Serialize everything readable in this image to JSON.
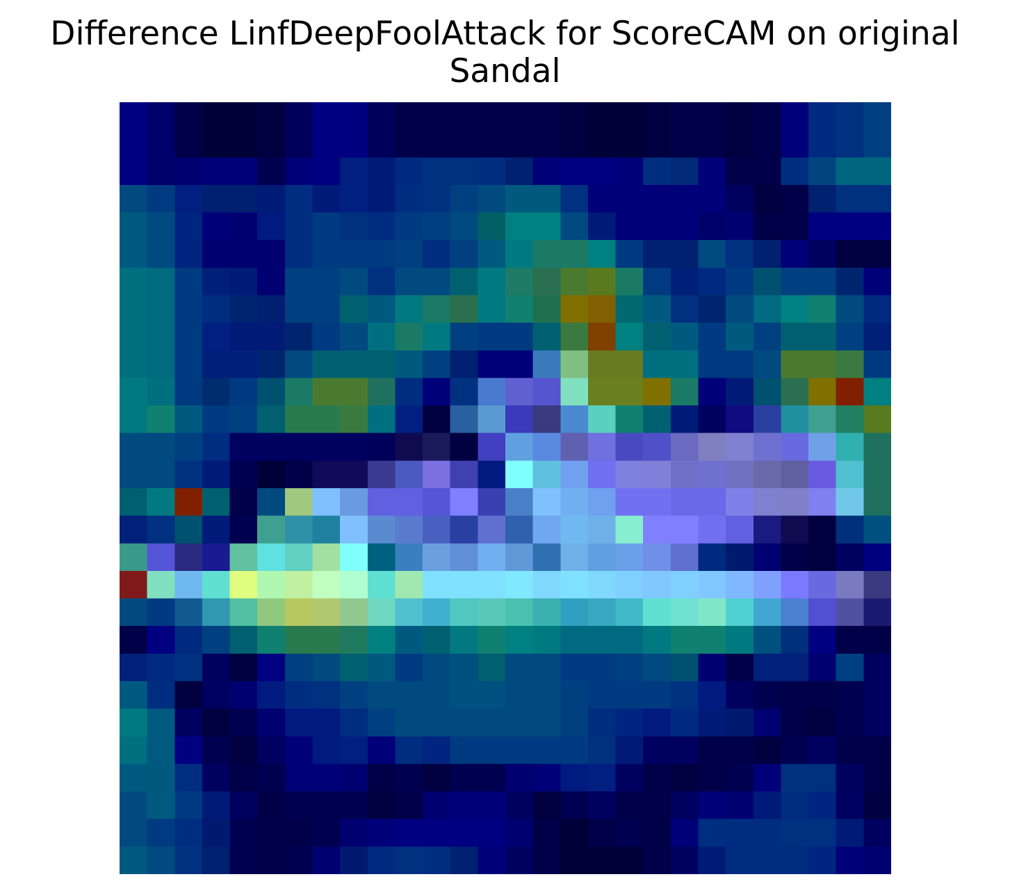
{
  "chart_data": {
    "type": "heatmap",
    "title_lines": [
      "Difference LinfDeepFoolAttack for ScoreCAM on original",
      "Sandal"
    ],
    "xlabel": "",
    "ylabel": "",
    "axes_visible": false,
    "grid": false,
    "legend": "none",
    "rows": 28,
    "cols": 28,
    "cells": [
      [
        "#000080",
        "#00006a",
        "#000048",
        "#000038",
        "#000038",
        "#000040",
        "#00005a",
        "#000080",
        "#000080",
        "#00005a",
        "#000048",
        "#000048",
        "#000048",
        "#000048",
        "#000048",
        "#000048",
        "#000040",
        "#000038",
        "#000038",
        "#000040",
        "#000048",
        "#000048",
        "#000040",
        "#000048",
        "#00007a",
        "#002a80",
        "#003080",
        "#004080"
      ],
      [
        "#000080",
        "#00006a",
        "#000048",
        "#000038",
        "#000038",
        "#000040",
        "#00005a",
        "#000080",
        "#000080",
        "#00005a",
        "#000048",
        "#000048",
        "#000048",
        "#000048",
        "#000048",
        "#000048",
        "#000040",
        "#000038",
        "#000038",
        "#000040",
        "#000048",
        "#000048",
        "#000040",
        "#000048",
        "#00007a",
        "#002a80",
        "#003080",
        "#004080"
      ],
      [
        "#000080",
        "#00006a",
        "#000070",
        "#000078",
        "#000078",
        "#000050",
        "#000078",
        "#000080",
        "#001f80",
        "#001a78",
        "#002a80",
        "#003080",
        "#003080",
        "#002d80",
        "#002070",
        "#000078",
        "#000080",
        "#000080",
        "#000078",
        "#002d80",
        "#002a78",
        "#000078",
        "#000048",
        "#000048",
        "#002d80",
        "#004580",
        "#006680",
        "#006680"
      ],
      [
        "#004a80",
        "#003a80",
        "#001f80",
        "#001f70",
        "#001f70",
        "#001a78",
        "#002d80",
        "#001a78",
        "#001f80",
        "#001a78",
        "#002d80",
        "#003080",
        "#004080",
        "#004a80",
        "#005a80",
        "#005a80",
        "#003080",
        "#000078",
        "#000078",
        "#000078",
        "#000078",
        "#000078",
        "#000060",
        "#000040",
        "#000048",
        "#002070",
        "#003080",
        "#003080"
      ],
      [
        "#005a80",
        "#004a80",
        "#002580",
        "#000078",
        "#000070",
        "#001a80",
        "#002d80",
        "#003a80",
        "#003080",
        "#002d80",
        "#003a80",
        "#004080",
        "#004a80",
        "#006066",
        "#008080",
        "#008080",
        "#004a80",
        "#001a78",
        "#000078",
        "#000078",
        "#000078",
        "#00006a",
        "#000070",
        "#000048",
        "#000048",
        "#000080",
        "#000080",
        "#000080"
      ],
      [
        "#005a80",
        "#004a80",
        "#002580",
        "#000070",
        "#000070",
        "#000070",
        "#002d80",
        "#003a80",
        "#003a80",
        "#003a80",
        "#004080",
        "#002d80",
        "#004080",
        "#005a80",
        "#007a80",
        "#1a7a66",
        "#1a7a66",
        "#008080",
        "#003a80",
        "#002070",
        "#002070",
        "#004a80",
        "#003080",
        "#002070",
        "#000078",
        "#000060",
        "#000040",
        "#000040"
      ],
      [
        "#007080",
        "#006a80",
        "#003a80",
        "#001f78",
        "#001a78",
        "#000070",
        "#004080",
        "#004080",
        "#004a80",
        "#003080",
        "#004a80",
        "#004a80",
        "#006070",
        "#007a80",
        "#1f7a66",
        "#2a7050",
        "#4a7a30",
        "#5a7a20",
        "#1a7a66",
        "#003a80",
        "#001f78",
        "#002a80",
        "#003a80",
        "#005070",
        "#004080",
        "#004080",
        "#002570",
        "#000078"
      ],
      [
        "#007080",
        "#006a80",
        "#003a80",
        "#002d80",
        "#002570",
        "#001f70",
        "#004080",
        "#004080",
        "#006070",
        "#005a80",
        "#007a80",
        "#1a7a66",
        "#2a7050",
        "#007a80",
        "#108070",
        "#207050",
        "#807000",
        "#806000",
        "#006a70",
        "#005a80",
        "#003080",
        "#002570",
        "#004a80",
        "#006a80",
        "#008080",
        "#108070",
        "#004a80",
        "#002a80"
      ],
      [
        "#007080",
        "#006a80",
        "#003a80",
        "#001f80",
        "#001a78",
        "#001a78",
        "#002570",
        "#003a80",
        "#004a80",
        "#007080",
        "#1a7a66",
        "#007a80",
        "#004080",
        "#003a80",
        "#003a80",
        "#006070",
        "#3a7a40",
        "#804000",
        "#008080",
        "#006070",
        "#005a80",
        "#003a80",
        "#005a80",
        "#004080",
        "#006070",
        "#006070",
        "#004080",
        "#001f78"
      ],
      [
        "#007080",
        "#006a80",
        "#003a80",
        "#001f78",
        "#001f78",
        "#002570",
        "#004a80",
        "#006070",
        "#006070",
        "#006070",
        "#005a80",
        "#004080",
        "#002070",
        "#000078",
        "#000078",
        "#3a7aba",
        "#80c080",
        "#6a7a20",
        "#6a7a20",
        "#007080",
        "#007080",
        "#003a80",
        "#003a80",
        "#004a80",
        "#4a7a30",
        "#4a7a30",
        "#3a7a40",
        "#003a80"
      ],
      [
        "#007a80",
        "#007080",
        "#003a80",
        "#002d70",
        "#003a80",
        "#005070",
        "#1a7a66",
        "#4a7a30",
        "#4a7a30",
        "#207060",
        "#002d80",
        "#000078",
        "#003080",
        "#4a7ad0",
        "#6060d0",
        "#5555d0",
        "#80e0c0",
        "#6a8020",
        "#6a8020",
        "#807000",
        "#1a7a66",
        "#000078",
        "#001a78",
        "#005070",
        "#2a7050",
        "#807000",
        "#802000",
        "#008080"
      ],
      [
        "#007a80",
        "#108070",
        "#005a80",
        "#003a80",
        "#004080",
        "#006070",
        "#2a7a50",
        "#2a7a50",
        "#3a7a40",
        "#007080",
        "#001f80",
        "#000040",
        "#2a5fa0",
        "#5a9ad0",
        "#3a3aba",
        "#3a3a80",
        "#4a8ad0",
        "#5ad0c0",
        "#108070",
        "#006070",
        "#001a78",
        "#000060",
        "#100a80",
        "#2a40a0",
        "#2090a0",
        "#40a090",
        "#208060",
        "#5a7a20"
      ],
      [
        "#004a80",
        "#004a80",
        "#004080",
        "#002d80",
        "#000060",
        "#000060",
        "#000060",
        "#000060",
        "#000060",
        "#00005a",
        "#100a50",
        "#1a1a5a",
        "#000040",
        "#4040c0",
        "#60a0e0",
        "#5a8ae0",
        "#6060b0",
        "#7070e0",
        "#4a4ac0",
        "#5050c8",
        "#6a6ac0",
        "#8080c0",
        "#8080d0",
        "#7070d0",
        "#6a6ae0",
        "#70a0e8",
        "#30b0b0",
        "#207060"
      ],
      [
        "#004a80",
        "#004a80",
        "#003080",
        "#001a78",
        "#000050",
        "#000038",
        "#000048",
        "#100a5a",
        "#100a5a",
        "#3a3a90",
        "#4a5ac0",
        "#7a70e0",
        "#4040b0",
        "#001a80",
        "#80ffff",
        "#60c0e0",
        "#70a0f0",
        "#7070f0",
        "#8080e0",
        "#8080d8",
        "#7070c8",
        "#7070d0",
        "#7070c0",
        "#6a6aaa",
        "#6060a0",
        "#6a5ae0",
        "#50c0d0",
        "#207060"
      ],
      [
        "#006070",
        "#007a80",
        "#802000",
        "#006070",
        "#000048",
        "#004a80",
        "#a0c880",
        "#80c0ff",
        "#6a9ae0",
        "#6060e0",
        "#6060e0",
        "#5555d8",
        "#8080ff",
        "#3a40b0",
        "#4a80c8",
        "#80c0ff",
        "#70b0f0",
        "#70a0f0",
        "#7070f0",
        "#7070f0",
        "#6a6ae8",
        "#6a6ae8",
        "#8080e8",
        "#8080d0",
        "#8080c8",
        "#8080f0",
        "#70c8e8",
        "#207060"
      ],
      [
        "#00207a",
        "#003080",
        "#005070",
        "#001a78",
        "#000050",
        "#40a090",
        "#3090a8",
        "#2080a0",
        "#80c0ff",
        "#5a8ad0",
        "#5a7ad0",
        "#4a60c0",
        "#2a40a0",
        "#6070d0",
        "#3060b0",
        "#70a8f0",
        "#70b8f0",
        "#70b0e8",
        "#88eed0",
        "#8080ff",
        "#8080ff",
        "#7070f0",
        "#6060e0",
        "#1a1a80",
        "#100a50",
        "#000040",
        "#00307a",
        "#005080"
      ],
      [
        "#3a9a8a",
        "#5555d8",
        "#2a2a80",
        "#1a1a90",
        "#60c0a0",
        "#60e0e0",
        "#60d0c0",
        "#a0e0a0",
        "#80ffff",
        "#006080",
        "#3a80c0",
        "#6aa0e0",
        "#6090d8",
        "#70b0f0",
        "#6098d8",
        "#3070b0",
        "#70b0e8",
        "#60a0e0",
        "#6aa0e8",
        "#7090e8",
        "#6070d0",
        "#002a80",
        "#001a70",
        "#000070",
        "#000048",
        "#000040",
        "#000060",
        "#000080"
      ],
      [
        "#801a1a",
        "#80e0c0",
        "#70b8f0",
        "#60e0d0",
        "#e0ff80",
        "#b0f8b0",
        "#c0f0a0",
        "#c0ffc0",
        "#b0ffd0",
        "#60e0d0",
        "#a0e8b0",
        "#80e0ff",
        "#80e0ff",
        "#80e0ff",
        "#80e8ff",
        "#80d8ff",
        "#80e0ff",
        "#80d8ff",
        "#80d0ff",
        "#80c8ff",
        "#80d0ff",
        "#80c8ff",
        "#80b8ff",
        "#80a0ff",
        "#7a7aff",
        "#6a6ae0",
        "#7a7ac0",
        "#3a3a80"
      ],
      [
        "#004a80",
        "#003a80",
        "#105a90",
        "#3098b0",
        "#50c0a0",
        "#90c880",
        "#b8c860",
        "#b0c870",
        "#90c890",
        "#70d8c0",
        "#50c0d0",
        "#40b0d0",
        "#50c8c0",
        "#5ac8b8",
        "#4ac0b0",
        "#3ab0b0",
        "#30a0c0",
        "#3aa8c0",
        "#40b8c8",
        "#60e0d0",
        "#70e0d0",
        "#80e8c8",
        "#50d0d0",
        "#40a8d0",
        "#4a80d0",
        "#5050d0",
        "#5050a0",
        "#1a1a70"
      ],
      [
        "#000048",
        "#000080",
        "#002a80",
        "#004080",
        "#006070",
        "#108070",
        "#2a7a50",
        "#2a7a50",
        "#207a60",
        "#008080",
        "#005a80",
        "#006070",
        "#007a80",
        "#108070",
        "#008080",
        "#007a80",
        "#006a80",
        "#006a80",
        "#006a80",
        "#007a80",
        "#108070",
        "#108070",
        "#007a80",
        "#005080",
        "#00307a",
        "#000080",
        "#000048",
        "#000048"
      ],
      [
        "#00207a",
        "#002a80",
        "#003080",
        "#000060",
        "#000040",
        "#000080",
        "#004080",
        "#004a80",
        "#006070",
        "#005a80",
        "#003a80",
        "#004a80",
        "#005080",
        "#006070",
        "#004a80",
        "#004a80",
        "#003a80",
        "#003a80",
        "#004080",
        "#004a80",
        "#005070",
        "#000070",
        "#000048",
        "#00207a",
        "#00207a",
        "#000070",
        "#004080",
        "#000060"
      ],
      [
        "#005a80",
        "#002d80",
        "#000040",
        "#000060",
        "#000070",
        "#001a80",
        "#002d80",
        "#003080",
        "#004080",
        "#004a80",
        "#004a80",
        "#004a80",
        "#005080",
        "#005080",
        "#004a80",
        "#004a80",
        "#004080",
        "#003a80",
        "#003a80",
        "#003a80",
        "#003080",
        "#001a80",
        "#000060",
        "#000050",
        "#000048",
        "#000048",
        "#000050",
        "#000060"
      ],
      [
        "#007a80",
        "#005a80",
        "#000060",
        "#000040",
        "#000050",
        "#000070",
        "#001a80",
        "#001a80",
        "#002d80",
        "#004080",
        "#004a80",
        "#004a80",
        "#004a80",
        "#004a80",
        "#004a80",
        "#004a80",
        "#004080",
        "#002d80",
        "#002580",
        "#001a80",
        "#002a80",
        "#001a78",
        "#001a70",
        "#000070",
        "#000048",
        "#000040",
        "#000050",
        "#000060"
      ],
      [
        "#007080",
        "#005a80",
        "#000080",
        "#000050",
        "#000040",
        "#000060",
        "#000078",
        "#001a80",
        "#001f80",
        "#000078",
        "#002d80",
        "#002580",
        "#003a80",
        "#003a80",
        "#003a80",
        "#003a80",
        "#003a80",
        "#003080",
        "#001a78",
        "#000060",
        "#000060",
        "#000048",
        "#000048",
        "#000040",
        "#000050",
        "#000060",
        "#000048",
        "#000048"
      ],
      [
        "#005a80",
        "#005a80",
        "#002d80",
        "#000060",
        "#000048",
        "#000050",
        "#000078",
        "#000078",
        "#000070",
        "#000048",
        "#000050",
        "#000040",
        "#000050",
        "#000050",
        "#000070",
        "#000078",
        "#001a80",
        "#001f80",
        "#000060",
        "#000048",
        "#000040",
        "#000048",
        "#000050",
        "#000078",
        "#003080",
        "#003080",
        "#000060",
        "#000048"
      ],
      [
        "#004a80",
        "#005a80",
        "#003a80",
        "#001a78",
        "#000060",
        "#000048",
        "#000050",
        "#000050",
        "#000050",
        "#000040",
        "#000048",
        "#000070",
        "#000078",
        "#000078",
        "#000060",
        "#000040",
        "#000050",
        "#000060",
        "#000048",
        "#000048",
        "#000060",
        "#000078",
        "#000070",
        "#001a78",
        "#002d80",
        "#002580",
        "#000060",
        "#000040"
      ],
      [
        "#004a80",
        "#003a80",
        "#002d80",
        "#001a70",
        "#000050",
        "#000048",
        "#000048",
        "#000050",
        "#000070",
        "#000078",
        "#000080",
        "#000080",
        "#000080",
        "#000080",
        "#000070",
        "#000048",
        "#000038",
        "#000048",
        "#000050",
        "#000048",
        "#000078",
        "#002d80",
        "#002d80",
        "#002d80",
        "#003080",
        "#003080",
        "#001a78",
        "#000060"
      ],
      [
        "#005a80",
        "#004a80",
        "#003080",
        "#002070",
        "#000050",
        "#000048",
        "#000050",
        "#000070",
        "#001a70",
        "#002a80",
        "#003080",
        "#002d80",
        "#002070",
        "#000078",
        "#000060",
        "#000048",
        "#000038",
        "#000038",
        "#000038",
        "#000048",
        "#000060",
        "#001a78",
        "#002d80",
        "#002d80",
        "#002d80",
        "#002580",
        "#000078",
        "#000070"
      ]
    ]
  }
}
